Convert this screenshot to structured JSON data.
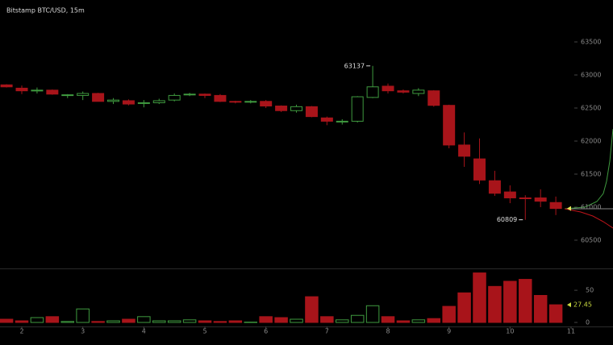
{
  "chart_data": [
    {
      "type": "candlestick",
      "title": "Bitstamp BTC/USD, 15m",
      "x": [
        1.75,
        2,
        2.25,
        2.5,
        2.75,
        3,
        3.25,
        3.5,
        3.75,
        4,
        4.25,
        4.5,
        4.75,
        5,
        5.25,
        5.5,
        5.75,
        6,
        6.25,
        6.5,
        6.75,
        7,
        7.25,
        7.5,
        7.75,
        8,
        8.25,
        8.5,
        8.75,
        9,
        9.25,
        9.5,
        9.75,
        10,
        10.25,
        10.5,
        10.75
      ],
      "open": [
        62850,
        62800,
        62760,
        62770,
        62690,
        62690,
        62720,
        62600,
        62610,
        62570,
        62580,
        62620,
        62700,
        62710,
        62690,
        62600,
        62590,
        62600,
        62530,
        62460,
        62520,
        62350,
        62290,
        62300,
        62660,
        62830,
        62760,
        62720,
        62760,
        62540,
        61940,
        61730,
        61400,
        61230,
        61140,
        61140,
        61070
      ],
      "high": [
        62860,
        62840,
        62810,
        62780,
        62710,
        62750,
        62730,
        62650,
        62630,
        62620,
        62640,
        62720,
        62730,
        62720,
        62710,
        62610,
        62620,
        62620,
        62540,
        62550,
        62530,
        62370,
        62330,
        62680,
        63137,
        62870,
        62780,
        62800,
        62770,
        62550,
        62130,
        62040,
        61550,
        61330,
        61180,
        61270,
        61160
      ],
      "low": [
        62810,
        62710,
        62720,
        62700,
        62650,
        62620,
        62600,
        62560,
        62540,
        62510,
        62560,
        62600,
        62680,
        62650,
        62590,
        62570,
        62570,
        62500,
        62440,
        62430,
        62360,
        62240,
        62250,
        62280,
        62650,
        62720,
        62720,
        62680,
        62520,
        61890,
        61610,
        61350,
        61170,
        61060,
        60809,
        61000,
        60880
      ],
      "close": [
        62820,
        62760,
        62770,
        62710,
        62700,
        62720,
        62600,
        62620,
        62560,
        62580,
        62610,
        62690,
        62710,
        62690,
        62600,
        62590,
        62600,
        62530,
        62460,
        62520,
        62370,
        62300,
        62300,
        62670,
        62820,
        62760,
        62740,
        62770,
        62540,
        61940,
        61770,
        61410,
        61210,
        61140,
        61130,
        61090,
        60980
      ],
      "up_color": "#3f9a3f",
      "down_color": "#a8141a",
      "xlim": [
        1.643,
        11.687
      ],
      "xticks": [
        2,
        3,
        4,
        5,
        6,
        7,
        8,
        9,
        10,
        11
      ],
      "ylim": [
        60073,
        64134
      ],
      "yticks": [
        60500,
        61000,
        61500,
        62000,
        62500,
        63000,
        63500
      ]
    },
    {
      "type": "bar",
      "values": [
        5,
        2.5,
        7.5,
        9,
        1.5,
        21,
        1.5,
        2.5,
        5,
        9,
        2.5,
        2.5,
        4,
        2.5,
        1.5,
        2.5,
        0.5,
        9,
        7.5,
        5,
        40,
        9,
        4,
        11,
        26,
        9,
        2.5,
        4,
        6,
        25,
        46,
        77,
        56,
        64,
        67,
        42,
        27.45
      ],
      "ylim": [
        0,
        84
      ],
      "yticks": [
        0,
        50
      ]
    }
  ]
}
